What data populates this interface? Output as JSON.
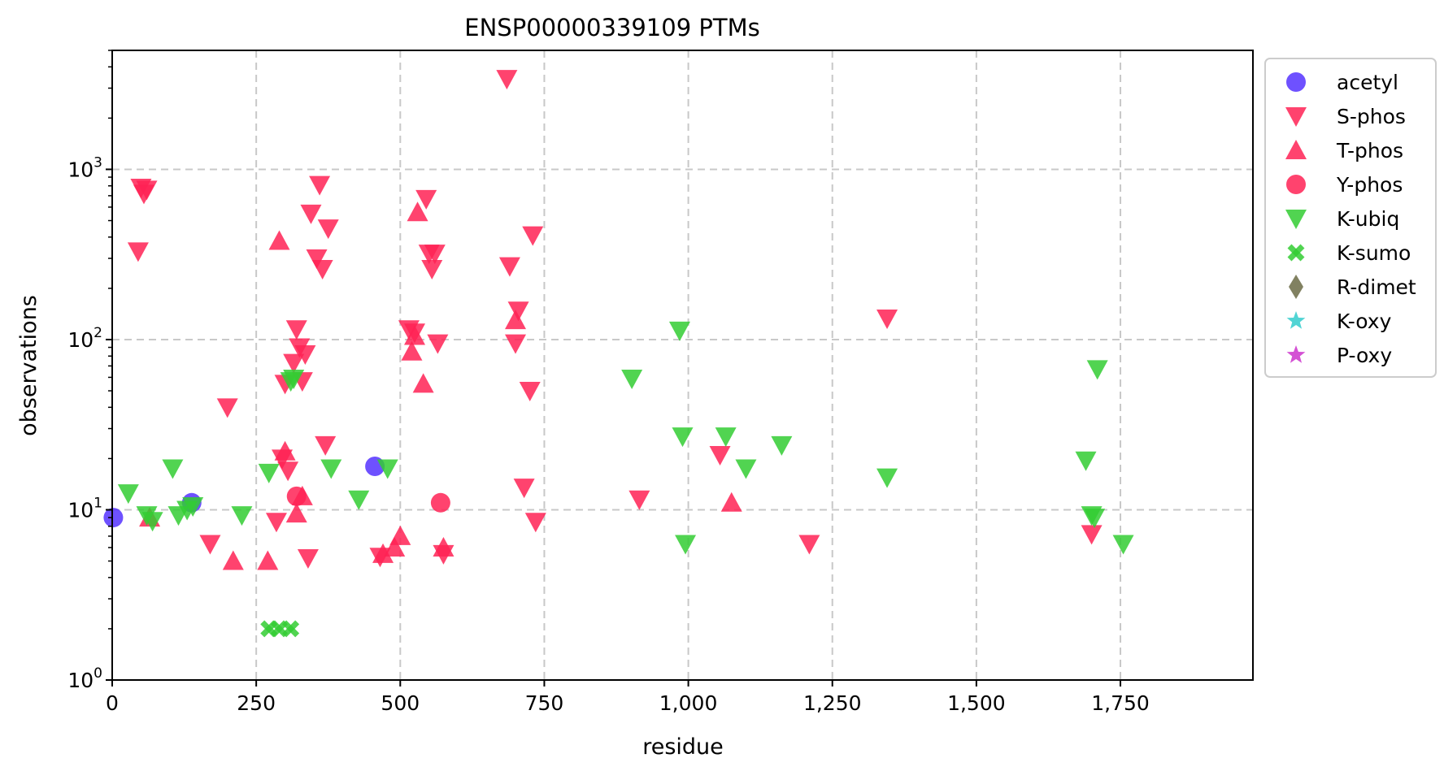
{
  "chart_data": {
    "type": "scatter",
    "title": "ENSP00000339109 PTMs",
    "xlabel": "residue",
    "ylabel": "observations",
    "xlim": [
      0,
      1980
    ],
    "ylim": [
      1,
      5000
    ],
    "yscale": "log",
    "grid": true,
    "legend_position": "outside-right-top",
    "x_ticks": [
      0,
      250,
      500,
      750,
      1000,
      1250,
      1500,
      1750
    ],
    "x_tick_labels": [
      "0",
      "250",
      "500",
      "750",
      "1,000",
      "1,250",
      "1,500",
      "1,750"
    ],
    "y_ticks": [
      1,
      10,
      100,
      1000
    ],
    "y_tick_bases": [
      "10",
      "10",
      "10",
      "10"
    ],
    "y_tick_exponents": [
      "0",
      "1",
      "2",
      "3"
    ],
    "series": [
      {
        "name": "acetyl",
        "marker": "circle",
        "color": "#5533ff",
        "x": [
          2,
          138,
          456
        ],
        "y": [
          9,
          11,
          18
        ]
      },
      {
        "name": "S-phos",
        "marker": "triangle-down",
        "color": "#ff2255",
        "x": [
          45,
          50,
          55,
          60,
          170,
          200,
          285,
          295,
          300,
          305,
          315,
          320,
          325,
          330,
          335,
          340,
          345,
          355,
          360,
          365,
          370,
          375,
          465,
          515,
          525,
          545,
          550,
          555,
          560,
          565,
          575,
          685,
          690,
          700,
          705,
          715,
          725,
          730,
          735,
          915,
          1055,
          1210,
          1345,
          1700
        ],
        "y": [
          330,
          780,
          720,
          760,
          6.3,
          40,
          8.5,
          20,
          55,
          17,
          73,
          115,
          90,
          57,
          82,
          5.2,
          550,
          300,
          810,
          260,
          24,
          450,
          5.3,
          115,
          110,
          670,
          320,
          260,
          320,
          95,
          5.5,
          3400,
          270,
          95,
          148,
          13.5,
          50,
          410,
          8.5,
          11.5,
          21,
          6.3,
          133,
          7.2
        ]
      },
      {
        "name": "T-phos",
        "marker": "triangle-up",
        "color": "#ff2255",
        "x": [
          65,
          210,
          270,
          290,
          300,
          320,
          330,
          470,
          490,
          500,
          520,
          525,
          530,
          540,
          575,
          700,
          1075
        ],
        "y": [
          9,
          5,
          5,
          380,
          22,
          9.5,
          12,
          5.5,
          6,
          7,
          85,
          105,
          560,
          55,
          6,
          130,
          11
        ]
      },
      {
        "name": "Y-phos",
        "marker": "circle",
        "color": "#ff2255",
        "x": [
          320,
          570
        ],
        "y": [
          12,
          11
        ]
      },
      {
        "name": "K-ubiq",
        "marker": "triangle-down",
        "color": "#33cc33",
        "x": [
          28,
          60,
          70,
          105,
          115,
          130,
          140,
          225,
          272,
          310,
          315,
          380,
          428,
          478,
          902,
          985,
          990,
          995,
          1065,
          1100,
          1162,
          1345,
          1690,
          1700,
          1705,
          1710,
          1755
        ],
        "y": [
          12.5,
          9.3,
          8.6,
          17.5,
          9.3,
          10,
          10.5,
          9.3,
          16.5,
          57,
          59,
          17.5,
          11.5,
          17.5,
          59,
          113,
          27,
          6.3,
          27,
          17.5,
          24,
          15.5,
          19.5,
          9.3,
          9,
          67,
          6.3
        ]
      },
      {
        "name": "K-sumo",
        "marker": "x",
        "color": "#33cc33",
        "x": [
          272,
          290,
          310
        ],
        "y": [
          2,
          2,
          2
        ]
      },
      {
        "name": "R-dimet",
        "marker": "diamond",
        "color": "#6b6b45",
        "x": [],
        "y": []
      },
      {
        "name": "K-oxy",
        "marker": "star",
        "color": "#33cccc",
        "x": [],
        "y": []
      },
      {
        "name": "P-oxy",
        "marker": "star",
        "color": "#cc33cc",
        "x": [],
        "y": []
      }
    ]
  }
}
